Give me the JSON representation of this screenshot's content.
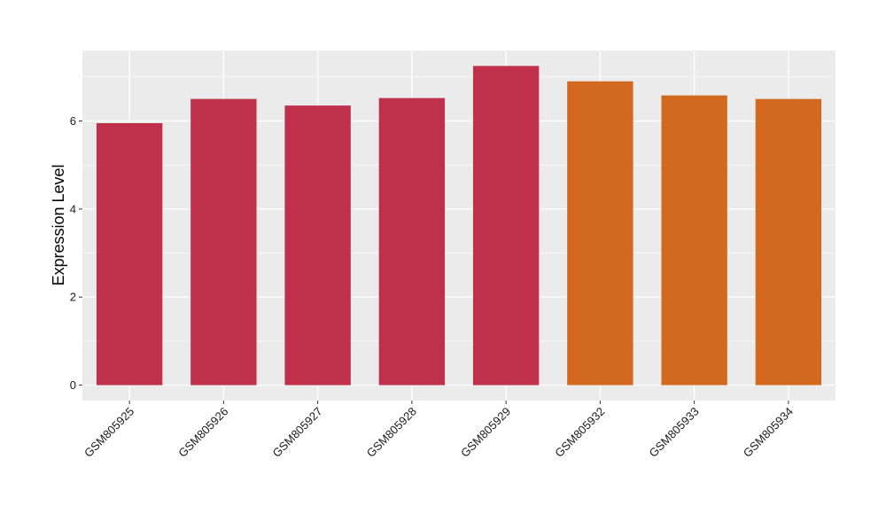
{
  "chart_data": {
    "type": "bar",
    "ylabel": "Expression Level",
    "xlabel": "",
    "categories": [
      "GSM805925",
      "GSM805926",
      "GSM805927",
      "GSM805928",
      "GSM805929",
      "GSM805932",
      "GSM805933",
      "GSM805934"
    ],
    "values": [
      5.95,
      6.5,
      6.35,
      6.52,
      7.25,
      6.9,
      6.58,
      6.5
    ],
    "bar_colors": [
      "#c0304a",
      "#c0304a",
      "#c0304a",
      "#c0304a",
      "#c0304a",
      "#d2691e",
      "#d2691e",
      "#d2691e"
    ],
    "y_ticks": [
      0,
      2,
      4,
      6
    ],
    "ylim": [
      -0.35,
      7.6
    ],
    "grid": true,
    "panel_background": "#ebebeb",
    "grid_color": "#ffffff"
  }
}
